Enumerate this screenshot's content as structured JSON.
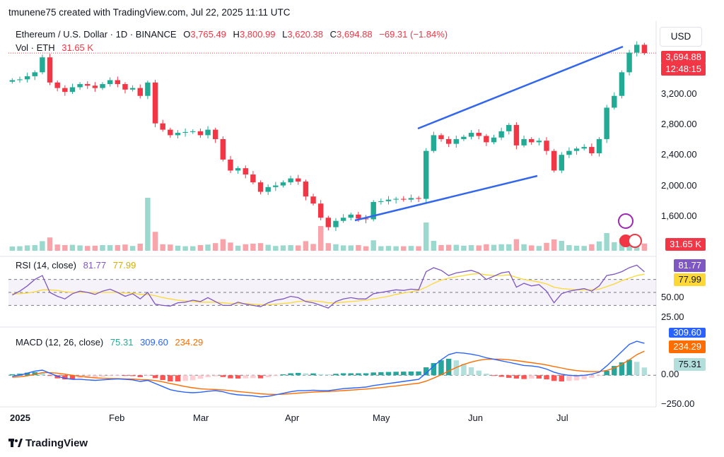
{
  "header": {
    "author_line": "tmunene75 created with TradingView.com, Jul 22, 2025 11:11 UTC",
    "symbol": "Ethereum / U.S. Dollar · 1D · BINANCE",
    "o_label": "O",
    "o_value": "3,765.49",
    "h_label": "H",
    "h_value": "3,800.99",
    "l_label": "L",
    "l_value": "3,620.38",
    "c_label": "C",
    "c_value": "3,694.88",
    "change": "−69.31 (−1.84%)",
    "vol_label": "Vol · ETH",
    "vol_value": "31.65 K"
  },
  "currency": "USD",
  "price_tag": "3,694.88",
  "countdown_tag": "12:48:15",
  "volume_tag": "31.65 K",
  "rsi": {
    "label": "RSI (14, close)",
    "value": "81.77",
    "ma_value": "77.99"
  },
  "macd": {
    "label": "MACD (12, 26, close)",
    "hist_value": "75.31",
    "macd_value": "309.60",
    "signal_value": "234.29"
  },
  "brand": "TradingView",
  "colors": {
    "up": "#22ab94",
    "down": "#f23645",
    "rsi": "#7e57c2",
    "rsi_ma": "#fdd835",
    "macd": "#2962ff",
    "signal": "#ff6d00",
    "trendline": "#3366ee"
  },
  "chart_data": [
    {
      "type": "candlestick",
      "title": "Ethereum / U.S. Dollar · 1D · BINANCE",
      "x_months": [
        "2025",
        "Feb",
        "Mar",
        "Apr",
        "May",
        "Jun",
        "Jul"
      ],
      "y_ticks": [
        "3,200.00",
        "2,800.00",
        "2,400.00",
        "2,000.00",
        "1,600.00"
      ],
      "ylim": [
        1180,
        4100
      ],
      "approx_close_path": [
        3350,
        3360,
        3400,
        3450,
        3640,
        3320,
        3250,
        3200,
        3260,
        3300,
        3280,
        3250,
        3300,
        3350,
        3300,
        3230,
        3250,
        3150,
        3320,
        2800,
        2720,
        2650,
        2680,
        2690,
        2700,
        2650,
        2720,
        2600,
        2340,
        2200,
        2230,
        2150,
        2050,
        1930,
        1990,
        2010,
        2050,
        2100,
        2060,
        1870,
        1780,
        1600,
        1480,
        1560,
        1600,
        1640,
        1590,
        1580,
        1800,
        1810,
        1830,
        1840,
        1830,
        1850,
        1840,
        2450,
        2650,
        2600,
        2540,
        2600,
        2630,
        2680,
        2640,
        2560,
        2620,
        2700,
        2780,
        2520,
        2600,
        2560,
        2580,
        2450,
        2200,
        2400,
        2450,
        2480,
        2500,
        2420,
        2600,
        3000,
        3150,
        3450,
        3700,
        3800,
        3694.88
      ],
      "trendlines": [
        {
          "from": {
            "date": "Apr 22",
            "price": 1560
          },
          "to": {
            "date": "Jun 21",
            "price": 2110
          }
        },
        {
          "from": {
            "date": "May 11",
            "price": 2740
          },
          "to": {
            "date": "Jul 20",
            "price": 3810
          }
        }
      ],
      "last_price": 3694.88
    },
    {
      "type": "line",
      "title": "RSI (14, close)",
      "ylim": [
        0,
        100
      ],
      "y_ticks": [
        "50.00",
        "25.00"
      ],
      "bands": [
        30,
        70
      ],
      "series": [
        {
          "name": "RSI",
          "values": [
            46,
            52,
            60,
            70,
            76,
            50,
            44,
            40,
            48,
            52,
            50,
            47,
            52,
            55,
            50,
            44,
            48,
            40,
            50,
            32,
            30,
            29,
            34,
            35,
            38,
            36,
            42,
            36,
            30,
            30,
            35,
            32,
            30,
            28,
            34,
            38,
            40,
            44,
            42,
            36,
            34,
            30,
            26,
            36,
            40,
            42,
            40,
            40,
            48,
            50,
            52,
            54,
            53,
            55,
            54,
            82,
            88,
            84,
            76,
            80,
            82,
            84,
            80,
            70,
            75,
            80,
            82,
            58,
            64,
            60,
            62,
            52,
            34,
            48,
            52,
            54,
            56,
            52,
            60,
            76,
            78,
            82,
            88,
            92,
            81.77
          ]
        },
        {
          "name": "RSI MA",
          "values": [
            48,
            48,
            49,
            51,
            54,
            54,
            53,
            51,
            50,
            50,
            50,
            50,
            50,
            50,
            50,
            49,
            49,
            47,
            47,
            45,
            42,
            40,
            38,
            37,
            36,
            35,
            35,
            35,
            34,
            33,
            33,
            33,
            32,
            31,
            31,
            32,
            33,
            34,
            36,
            37,
            37,
            36,
            34,
            34,
            35,
            36,
            37,
            38,
            40,
            42,
            44,
            47,
            49,
            51,
            53,
            58,
            64,
            69,
            72,
            74,
            76,
            78,
            79,
            77,
            76,
            76,
            77,
            73,
            70,
            68,
            66,
            63,
            58,
            56,
            55,
            54,
            54,
            54,
            55,
            59,
            63,
            68,
            72,
            76,
            77.99
          ]
        }
      ]
    },
    {
      "type": "line",
      "title": "MACD (12, 26, close)",
      "ylim": [
        -300,
        420
      ],
      "y_ticks": [
        "0.00",
        "−250.00"
      ],
      "series": [
        {
          "name": "MACD",
          "values": [
            -10,
            0,
            20,
            40,
            50,
            20,
            -10,
            -30,
            -40,
            -40,
            -45,
            -50,
            -45,
            -40,
            -35,
            -40,
            -45,
            -60,
            -50,
            -80,
            -110,
            -140,
            -155,
            -165,
            -170,
            -165,
            -155,
            -150,
            -160,
            -180,
            -190,
            -195,
            -200,
            -210,
            -205,
            -190,
            -175,
            -160,
            -150,
            -150,
            -145,
            -150,
            -150,
            -140,
            -130,
            -125,
            -120,
            -115,
            -100,
            -90,
            -80,
            -70,
            -60,
            -50,
            -40,
            20,
            90,
            150,
            200,
            220,
            215,
            205,
            190,
            170,
            155,
            140,
            125,
            110,
            95,
            90,
            80,
            60,
            30,
            10,
            0,
            -5,
            0,
            10,
            30,
            90,
            160,
            230,
            300,
            330,
            309.6
          ]
        },
        {
          "name": "Signal",
          "values": [
            -20,
            -15,
            -5,
            10,
            25,
            25,
            20,
            10,
            0,
            -10,
            -18,
            -25,
            -30,
            -32,
            -33,
            -35,
            -37,
            -42,
            -44,
            -52,
            -64,
            -80,
            -95,
            -110,
            -122,
            -131,
            -136,
            -139,
            -143,
            -150,
            -158,
            -165,
            -172,
            -180,
            -185,
            -186,
            -184,
            -179,
            -173,
            -168,
            -163,
            -160,
            -158,
            -154,
            -149,
            -144,
            -139,
            -134,
            -127,
            -120,
            -112,
            -104,
            -95,
            -86,
            -77,
            -57,
            -28,
            5,
            40,
            75,
            105,
            128,
            145,
            155,
            157,
            155,
            150,
            142,
            132,
            122,
            112,
            100,
            85,
            70,
            55,
            45,
            38,
            35,
            35,
            46,
            70,
            105,
            150,
            200,
            234.29
          ]
        },
        {
          "name": "Histogram",
          "values": [
            10,
            15,
            25,
            30,
            25,
            -5,
            -30,
            -40,
            -40,
            -30,
            -27,
            -25,
            -15,
            -8,
            -2,
            -5,
            -8,
            -18,
            -6,
            -28,
            -46,
            -60,
            -60,
            -55,
            -48,
            -34,
            -19,
            -11,
            -17,
            -30,
            -32,
            -30,
            -28,
            -30,
            -20,
            -4,
            9,
            19,
            23,
            18,
            18,
            10,
            8,
            14,
            19,
            19,
            19,
            19,
            27,
            30,
            32,
            34,
            35,
            36,
            37,
            77,
            118,
            145,
            160,
            145,
            110,
            77,
            45,
            15,
            -2,
            -15,
            -25,
            -32,
            -37,
            -32,
            -32,
            -40,
            -55,
            -60,
            -55,
            -50,
            -38,
            -25,
            -5,
            44,
            90,
            125,
            150,
            130,
            75.31
          ]
        }
      ]
    }
  ]
}
